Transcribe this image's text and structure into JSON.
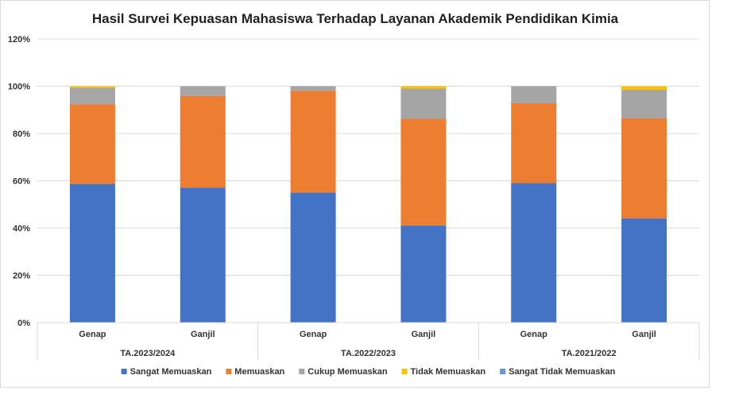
{
  "chart_data": {
    "type": "bar",
    "stacked": true,
    "title": "Hasil Survei Kepuasan Mahasiswa Terhadap Layanan Akademik Pendidikan Kimia",
    "xlabel": "",
    "ylabel": "",
    "ylim": [
      0,
      120
    ],
    "yticks": [
      "0%",
      "20%",
      "40%",
      "60%",
      "80%",
      "100%",
      "120%"
    ],
    "ytick_values": [
      0,
      20,
      40,
      60,
      80,
      100,
      120
    ],
    "grid": true,
    "legend_position": "bottom",
    "categories": [
      "Genap",
      "Ganjil",
      "Genap",
      "Ganjil",
      "Genap",
      "Ganjil"
    ],
    "groups": [
      {
        "label": "TA.2023/2024",
        "span": [
          0,
          1
        ]
      },
      {
        "label": "TA.2022/2023",
        "span": [
          2,
          3
        ]
      },
      {
        "label": "TA.2021/2022",
        "span": [
          4,
          5
        ]
      }
    ],
    "series": [
      {
        "name": "Sangat Memuaskan",
        "color": "#4472c4",
        "values": [
          58.7,
          57.1,
          55.0,
          41.1,
          59.0,
          44.1
        ]
      },
      {
        "name": "Memuaskan",
        "color": "#ed7d31",
        "values": [
          33.7,
          38.8,
          43.1,
          45.1,
          33.8,
          42.3
        ]
      },
      {
        "name": "Cukup Memuaskan",
        "color": "#a5a5a5",
        "values": [
          7.0,
          4.1,
          1.9,
          12.8,
          7.2,
          12.1
        ]
      },
      {
        "name": "Tidak Memuaskan",
        "color": "#ffc000",
        "values": [
          0.6,
          0.0,
          0.0,
          1.0,
          0.0,
          1.5
        ]
      },
      {
        "name": "Sangat Tidak Memuaskan",
        "color": "#5b9bd5",
        "values": [
          0.0,
          0.0,
          0.0,
          0.0,
          0.0,
          0.0
        ]
      }
    ]
  }
}
